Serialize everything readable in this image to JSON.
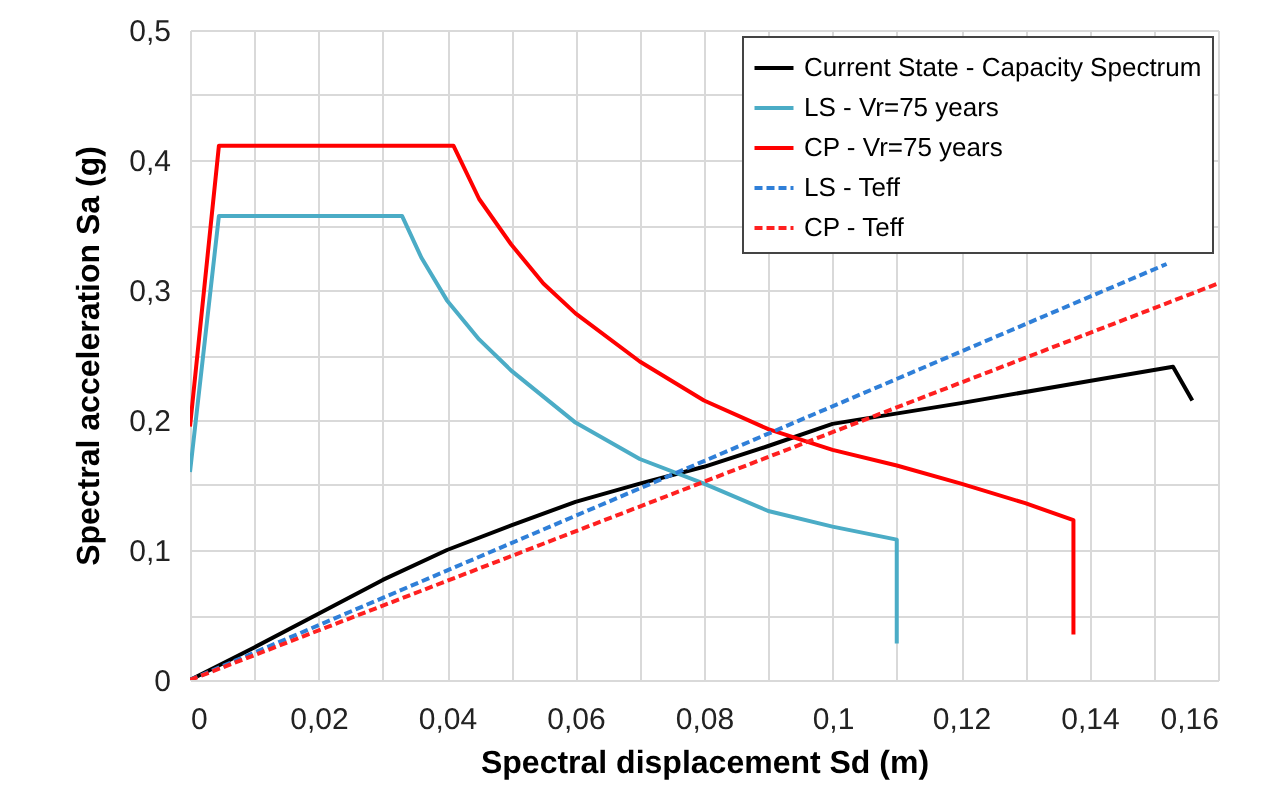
{
  "chart_data": {
    "type": "line",
    "xlabel": "Spectral displacement Sd (m)",
    "ylabel": "Spectral acceleration   Sa (g)",
    "xlim": [
      0,
      0.16
    ],
    "ylim": [
      0,
      0.5
    ],
    "xticks": [
      0,
      {
        "value": 0.01,
        "label": null
      },
      {
        "value": 0.02,
        "label": "0,02"
      },
      {
        "value": 0.03,
        "label": null
      },
      {
        "value": 0.04,
        "label": "0,04"
      },
      {
        "value": 0.05,
        "label": null
      },
      {
        "value": 0.06,
        "label": "0,06"
      },
      {
        "value": 0.07,
        "label": null
      },
      {
        "value": 0.08,
        "label": "0,08"
      },
      {
        "value": 0.09,
        "label": null
      },
      {
        "value": 0.1,
        "label": "0,1"
      },
      {
        "value": 0.11,
        "label": null
      },
      {
        "value": 0.12,
        "label": "0,12"
      },
      {
        "value": 0.13,
        "label": null
      },
      {
        "value": 0.14,
        "label": "0,14"
      },
      {
        "value": 0.15,
        "label": null
      },
      {
        "value": 0.16,
        "label": "0,16"
      }
    ],
    "yticks": [
      0,
      {
        "value": 0.05,
        "label": null
      },
      {
        "value": 0.1,
        "label": "0,1"
      },
      {
        "value": 0.15,
        "label": null
      },
      {
        "value": 0.2,
        "label": "0,2"
      },
      {
        "value": 0.25,
        "label": null
      },
      {
        "value": 0.3,
        "label": "0,3"
      },
      {
        "value": 0.35,
        "label": null
      },
      {
        "value": 0.4,
        "label": "0,4"
      },
      {
        "value": 0.45,
        "label": null
      },
      {
        "value": 0.5,
        "label": "0,5"
      }
    ],
    "grid": true,
    "legend": "top right",
    "marker": "none",
    "series": [
      {
        "name": "Current State - Capacity Spectrum",
        "color": "#000000",
        "line_style": "solid",
        "x": [
          0,
          0.01,
          0.02,
          0.03,
          0.04,
          0.05,
          0.06,
          0.07,
          0.08,
          0.09,
          0.1,
          0.12,
          0.14,
          0.153,
          0.156
        ],
        "values": [
          0,
          0.025,
          0.051,
          0.077,
          0.1,
          0.119,
          0.137,
          0.151,
          0.164,
          0.18,
          0.197,
          0.213,
          0.23,
          0.241,
          0.215
        ]
      },
      {
        "name": "LS - Vr=75 years",
        "color": "#4bacc6",
        "line_style": "solid",
        "x": [
          0,
          0.0045,
          0.033,
          0.036,
          0.04,
          0.045,
          0.05,
          0.06,
          0.07,
          0.08,
          0.09,
          0.1,
          0.11,
          0.11
        ],
        "values": [
          0.16,
          0.357,
          0.357,
          0.325,
          0.292,
          0.262,
          0.238,
          0.198,
          0.17,
          0.151,
          0.13,
          0.118,
          0.108,
          0.028
        ]
      },
      {
        "name": "CP - Vr=75 years",
        "color": "#ff0000",
        "line_style": "solid",
        "x": [
          0,
          0.0045,
          0.041,
          0.045,
          0.05,
          0.055,
          0.06,
          0.07,
          0.08,
          0.09,
          0.1,
          0.11,
          0.12,
          0.13,
          0.1375,
          0.1375
        ],
        "values": [
          0.195,
          0.411,
          0.411,
          0.37,
          0.335,
          0.305,
          0.282,
          0.245,
          0.215,
          0.193,
          0.177,
          0.165,
          0.151,
          0.136,
          0.123,
          0.035
        ]
      },
      {
        "name": "LS - Teff",
        "color": "#2f7fd8",
        "line_style": "dashed",
        "x": [
          0,
          0.152
        ],
        "values": [
          0,
          0.32
        ]
      },
      {
        "name": "CP - Teff",
        "color": "#ff2020",
        "line_style": "dashed",
        "x": [
          0,
          0.16
        ],
        "values": [
          0,
          0.305
        ]
      }
    ]
  }
}
